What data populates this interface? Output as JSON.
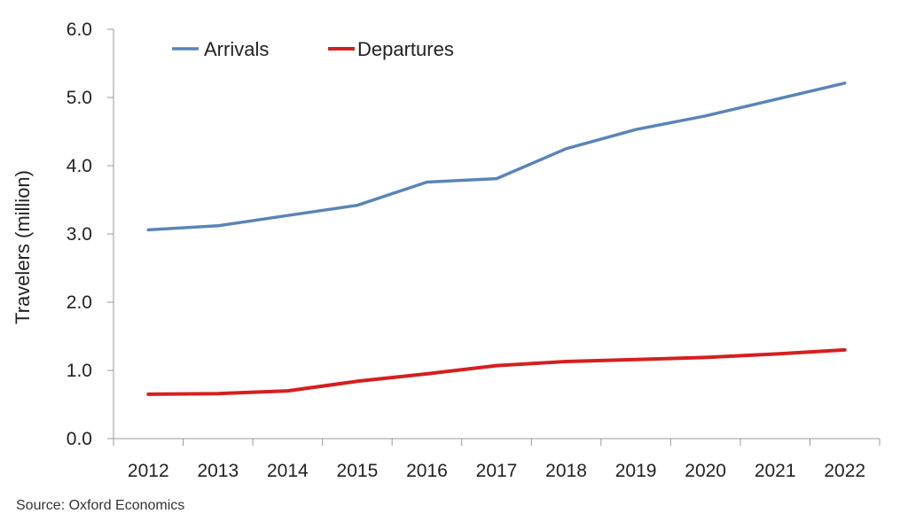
{
  "chart_data": {
    "type": "line",
    "categories": [
      "2012",
      "2013",
      "2014",
      "2015",
      "2016",
      "2017",
      "2018",
      "2019",
      "2020",
      "2021",
      "2022"
    ],
    "series": [
      {
        "name": "Arrivals",
        "color": "#5B84B7",
        "values": [
          3.06,
          3.12,
          3.27,
          3.42,
          3.76,
          3.81,
          4.25,
          4.53,
          4.73,
          4.97,
          5.21
        ]
      },
      {
        "name": "Departures",
        "color": "#D42020",
        "values": [
          0.65,
          0.66,
          0.7,
          0.84,
          0.95,
          1.07,
          1.13,
          1.16,
          1.19,
          1.24,
          1.3
        ]
      }
    ],
    "ylabel": "Travelers (million)",
    "xlabel": "",
    "ylim": [
      0,
      6
    ],
    "yticks": [
      "0.0",
      "1.0",
      "2.0",
      "3.0",
      "4.0",
      "5.0",
      "6.0"
    ],
    "grid": false,
    "legend_position": "top-left"
  },
  "source_note": "Source:  Oxford Economics"
}
